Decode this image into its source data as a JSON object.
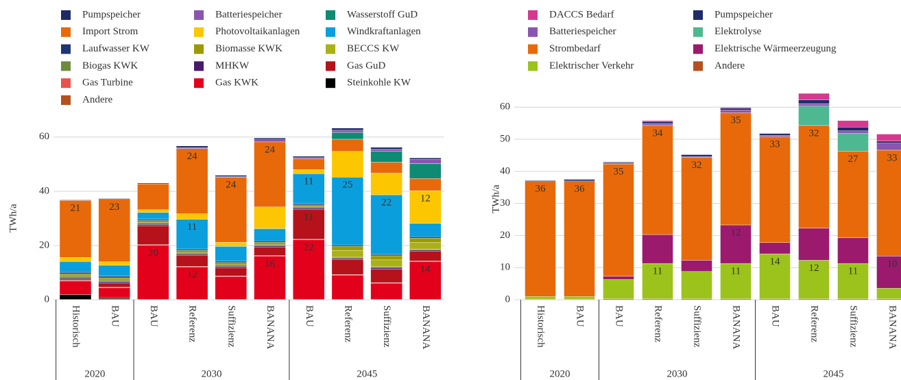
{
  "chart_data": [
    {
      "type": "bar",
      "stacked": true,
      "ylabel": "TWh/a",
      "grid": true,
      "ylim": [
        0,
        65
      ],
      "yticks": [
        0,
        20,
        40,
        60
      ],
      "groups": [
        {
          "label": "2020",
          "categories": [
            "Historisch",
            "BAU"
          ]
        },
        {
          "label": "2030",
          "categories": [
            "BAU",
            "Referenz",
            "Suffizienz",
            "BANANA"
          ]
        },
        {
          "label": "2045",
          "categories": [
            "BAU",
            "Referenz",
            "Suffizienz",
            "BANANA"
          ]
        }
      ],
      "series": [
        {
          "name": "Pumpspeicher",
          "color": "#1c2a66",
          "values": [
            0.2,
            0.3,
            0.3,
            0.6,
            0.5,
            0.6,
            0.5,
            0.8,
            0.7,
            0.6
          ]
        },
        {
          "name": "Batteriespeicher",
          "color": "#8a55b0",
          "values": [
            0,
            0,
            0,
            0.4,
            0.2,
            0.8,
            0.4,
            0.8,
            0.8,
            1.5
          ]
        },
        {
          "name": "Wasserstoff GuD",
          "color": "#0f8a73",
          "values": [
            0,
            0,
            0,
            0,
            0,
            0,
            0,
            2.5,
            4,
            5.5
          ]
        },
        {
          "name": "Import Strom",
          "color": "#e8690a",
          "values": [
            21,
            23,
            9.5,
            24,
            24,
            24,
            4,
            4.5,
            4,
            4.5
          ],
          "value_labels": [
            "21",
            "23",
            null,
            "24",
            "24",
            "24",
            null,
            null,
            null,
            null
          ]
        },
        {
          "name": "Photovoltaikanlagen",
          "color": "#fcc600",
          "values": [
            1.5,
            1.3,
            1,
            2,
            1.5,
            8,
            1.5,
            9.5,
            8,
            12
          ],
          "value_labels": [
            null,
            null,
            null,
            null,
            null,
            null,
            null,
            null,
            null,
            "12"
          ]
        },
        {
          "name": "Windkraftanlagen",
          "color": "#0a9fdc",
          "values": [
            4,
            4,
            2.5,
            11,
            5.5,
            4.5,
            11,
            25,
            22,
            5
          ],
          "value_labels": [
            null,
            null,
            null,
            "11",
            null,
            null,
            "11",
            "25",
            "22",
            null
          ]
        },
        {
          "name": "Laufwasser KW",
          "color": "#1d3475",
          "values": [
            0.6,
            0.6,
            0.5,
            0.5,
            0.5,
            0.5,
            0.5,
            0.5,
            0.5,
            0.5
          ]
        },
        {
          "name": "Biomasse KWK",
          "color": "#9a9a00",
          "values": [
            0.8,
            0.8,
            0.8,
            0.8,
            0.8,
            0.8,
            0.8,
            1.5,
            1.5,
            1.5
          ]
        },
        {
          "name": "BECCS KW",
          "color": "#aab116",
          "values": [
            0,
            0,
            0,
            0,
            0,
            0,
            0,
            2.5,
            2.5,
            2.5
          ]
        },
        {
          "name": "Biogas KWK",
          "color": "#6e8b3d",
          "values": [
            0.8,
            0.7,
            0.6,
            0.6,
            0.6,
            0.6,
            0.4,
            0.4,
            0.4,
            0.4
          ]
        },
        {
          "name": "MHKW",
          "color": "#4a1a6b",
          "values": [
            0.5,
            0.5,
            0.5,
            0.5,
            0.5,
            0.5,
            0.5,
            0.5,
            0.5,
            0.5
          ]
        },
        {
          "name": "Gas GuD",
          "color": "#b5121b",
          "values": [
            0.3,
            1.5,
            7,
            4,
            3,
            3,
            11,
            5.5,
            5,
            3.5
          ],
          "value_labels": [
            null,
            null,
            null,
            null,
            null,
            null,
            "11",
            null,
            null,
            null
          ]
        },
        {
          "name": "Gas Turbine",
          "color": "#e8524a",
          "values": [
            0.2,
            0.2,
            0.2,
            0.2,
            0.2,
            0.2,
            0.2,
            0.2,
            0.2,
            0.2
          ]
        },
        {
          "name": "Gas KWK",
          "color": "#e3001b",
          "values": [
            5,
            3.5,
            20,
            12,
            8.5,
            16,
            22,
            9,
            6,
            14
          ],
          "value_labels": [
            null,
            null,
            "20",
            "12",
            null,
            "16",
            "22",
            null,
            null,
            "14"
          ]
        },
        {
          "name": "Steinkohle KW",
          "color": "#000000",
          "values": [
            1.8,
            0.5,
            0,
            0,
            0,
            0,
            0,
            0,
            0,
            0
          ]
        },
        {
          "name": "Andere",
          "color": "#b5501e",
          "values": [
            0.1,
            0.4,
            0.1,
            0.1,
            0.1,
            0.1,
            0.1,
            0.1,
            0.1,
            0.1
          ]
        }
      ]
    },
    {
      "type": "bar",
      "stacked": true,
      "ylabel": "TWh/a",
      "grid": true,
      "ylim": [
        0,
        64
      ],
      "yticks": [
        0,
        10,
        20,
        30,
        40,
        50,
        60
      ],
      "groups": [
        {
          "label": "2020",
          "categories": [
            "Historisch",
            "BAU"
          ]
        },
        {
          "label": "2030",
          "categories": [
            "BAU",
            "Referenz",
            "Suffizienz",
            "BANANA"
          ]
        },
        {
          "label": "2045",
          "categories": [
            "BAU",
            "Referenz",
            "Suffizienz",
            "BANANA"
          ]
        }
      ],
      "series": [
        {
          "name": "DACCS Bedarf",
          "color": "#d6388f",
          "values": [
            0,
            0,
            0,
            0.3,
            0,
            0.3,
            0,
            2,
            2,
            2.2
          ]
        },
        {
          "name": "Pumpspeicher",
          "color": "#1f2a6b",
          "values": [
            0.2,
            0.5,
            0.3,
            0.6,
            0.6,
            0.6,
            0.6,
            1.2,
            1.2,
            0.6
          ]
        },
        {
          "name": "Batteriespeicher",
          "color": "#8a55b0",
          "values": [
            0,
            0,
            0.3,
            0.6,
            0.3,
            0.8,
            0.4,
            0.8,
            0.8,
            2.2
          ]
        },
        {
          "name": "Elektrolyse",
          "color": "#4db891",
          "values": [
            0,
            0,
            0,
            0,
            0,
            0,
            0,
            6,
            5.5,
            0
          ]
        },
        {
          "name": "Strombedarf",
          "color": "#e8690a",
          "values": [
            36,
            36,
            35,
            34,
            32,
            35,
            33,
            32,
            27,
            33
          ],
          "value_labels": [
            "36",
            "36",
            "35",
            "34",
            "32",
            "35",
            "33",
            "32",
            "27",
            "33"
          ]
        },
        {
          "name": "Elektrische Wärmeerzeugung",
          "color": "#9b1a6e",
          "values": [
            0,
            0,
            1,
            9,
            3.5,
            12,
            3.5,
            10,
            8,
            10
          ],
          "value_labels": [
            null,
            null,
            null,
            null,
            null,
            "12",
            null,
            null,
            null,
            "10"
          ]
        },
        {
          "name": "Elektrischer Verkehr",
          "color": "#9bc31b",
          "values": [
            0.8,
            0.8,
            6,
            11,
            8.5,
            11,
            14,
            12,
            11,
            3.3
          ],
          "value_labels": [
            null,
            null,
            null,
            "11",
            null,
            "11",
            "14",
            "12",
            "11",
            null
          ]
        },
        {
          "name": "Andere",
          "color": "#b5501e",
          "values": [
            0.2,
            0.2,
            0.3,
            0.3,
            0.3,
            0.3,
            0.3,
            0.3,
            0.3,
            0.3
          ]
        }
      ]
    }
  ]
}
